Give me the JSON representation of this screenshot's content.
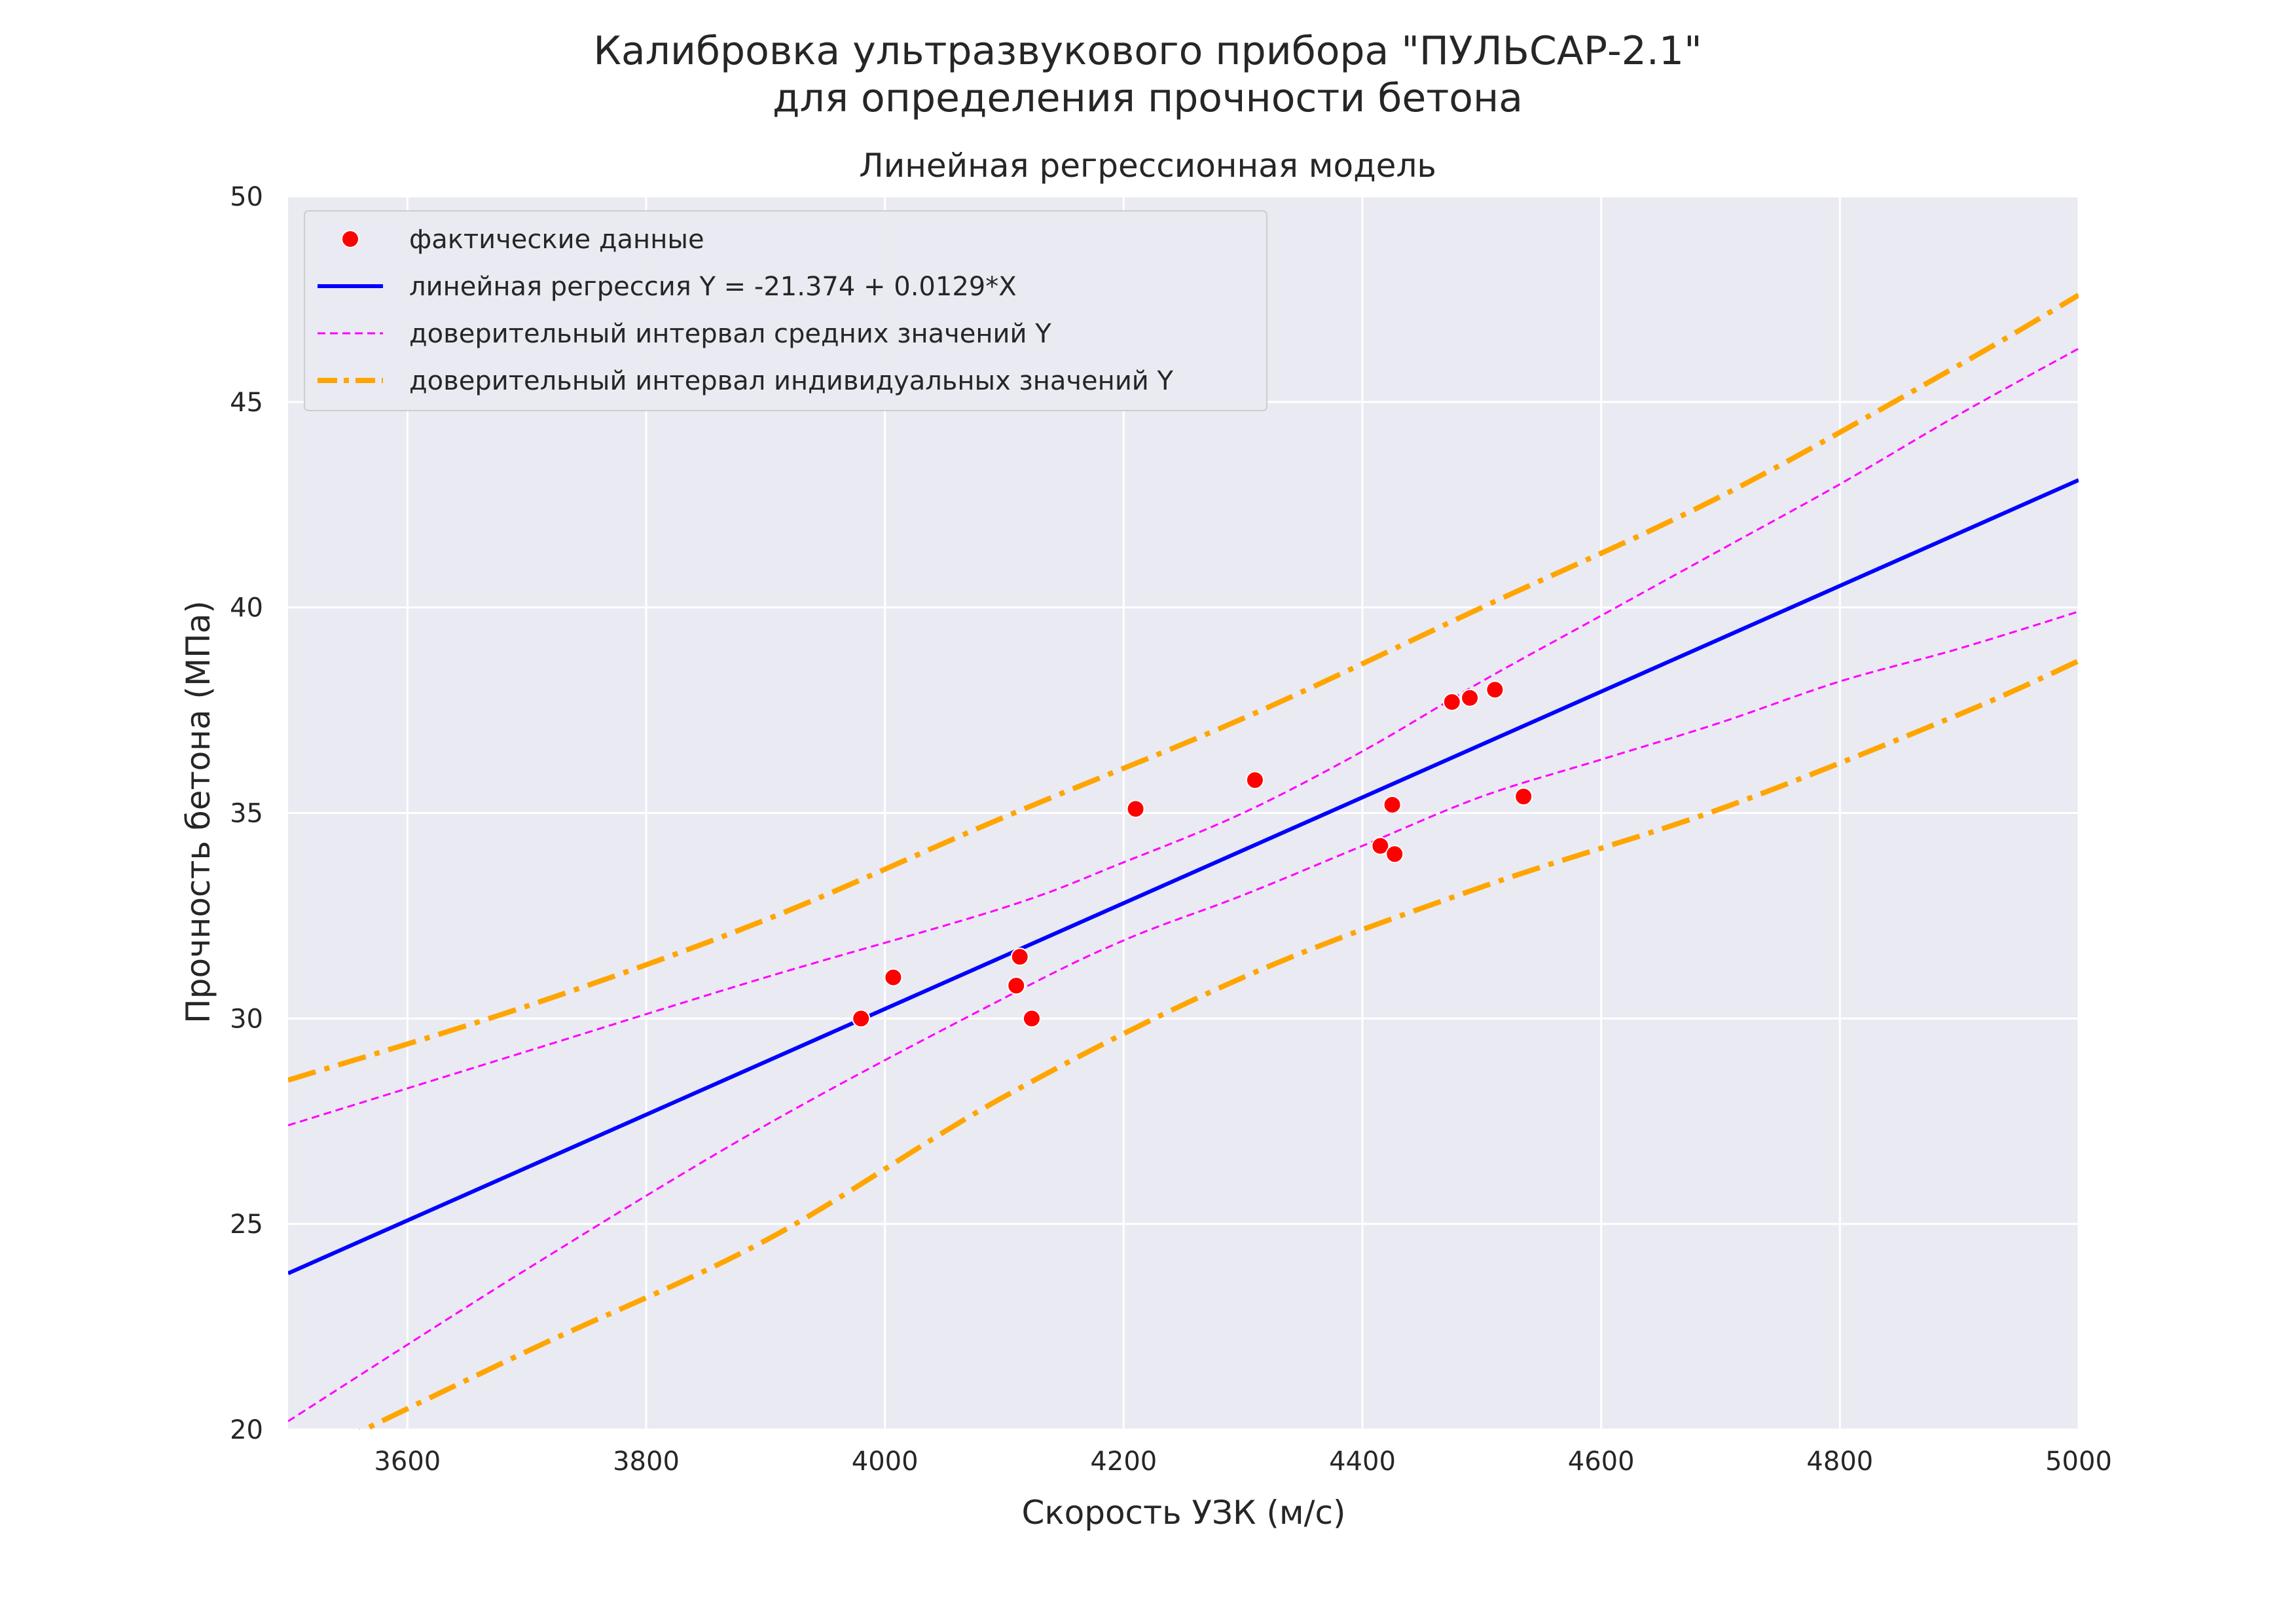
{
  "figure": {
    "suptitle_line1": "Калибровка ультразвукового прибора \"ПУЛЬСАР-2.1\"",
    "suptitle_line2": "для определения прочности бетона"
  },
  "chart_data": {
    "type": "scatter",
    "title": "Линейная регрессионная модель",
    "xlabel": "Скорость УЗК (м/с)",
    "ylabel": "Прочность бетона (МПа)",
    "xlim": [
      3500,
      5000
    ],
    "ylim": [
      20,
      50
    ],
    "xticks": [
      "3600",
      "3800",
      "4000",
      "4200",
      "4400",
      "4600",
      "4800",
      "5000"
    ],
    "yticks": [
      "20",
      "25",
      "30",
      "35",
      "40",
      "45",
      "50"
    ],
    "grid": true,
    "legend_position": "top-left",
    "colors": {
      "background": "#eaeaf2",
      "grid": "#ffffff",
      "points": "#ff0000",
      "regression": "#0000ff",
      "ci_mean": "#ff00ff",
      "ci_individual": "#ffa500"
    },
    "legend": [
      "фактические данные",
      "линейная регрессия Y = -21.374 + 0.0129*X",
      "доверительный интервал средних значений Y",
      "доверительный интервал индивидуальных значений Y"
    ],
    "series": [
      {
        "name": "фактические данные",
        "kind": "scatter",
        "x": [
          3980,
          4007,
          4110,
          4113,
          4123,
          4210,
          4310,
          4415,
          4425,
          4427,
          4475,
          4490,
          4511,
          4535
        ],
        "y": [
          30.0,
          31.0,
          30.8,
          31.5,
          30.0,
          35.1,
          35.8,
          34.2,
          35.2,
          34.0,
          37.7,
          37.8,
          38.0,
          35.4
        ]
      },
      {
        "name": "линейная регрессия Y = -21.374 + 0.0129*X",
        "kind": "line",
        "x": [
          3500,
          5000
        ],
        "y": [
          23.8,
          43.1
        ]
      },
      {
        "name": "доверительный интервал средних значений Y",
        "kind": "band",
        "x": [
          3500,
          3700,
          3900,
          4100,
          4200,
          4300,
          4400,
          4500,
          4600,
          4700,
          4800,
          4900,
          5000
        ],
        "upper": [
          27.4,
          29.2,
          31.0,
          32.7,
          33.8,
          35.0,
          36.5,
          38.2,
          39.8,
          41.4,
          43.0,
          44.7,
          46.3
        ],
        "lower": [
          20.2,
          23.9,
          27.4,
          30.5,
          31.9,
          33.0,
          34.2,
          35.4,
          36.3,
          37.2,
          38.2,
          39.0,
          39.9
        ]
      },
      {
        "name": "доверительный интервал индивидуальных значений Y",
        "kind": "band",
        "x": [
          3500,
          3700,
          3900,
          4100,
          4300,
          4500,
          4700,
          4900,
          5000
        ],
        "upper": [
          28.5,
          30.3,
          32.4,
          34.9,
          37.3,
          40.0,
          42.7,
          45.9,
          47.6
        ],
        "lower": [
          19.1,
          21.9,
          24.6,
          28.1,
          31.0,
          33.2,
          35.1,
          37.4,
          38.7
        ]
      }
    ]
  }
}
